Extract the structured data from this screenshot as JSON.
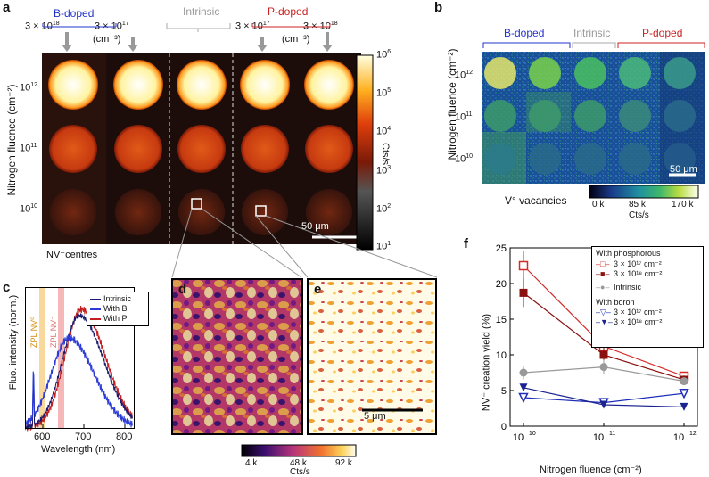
{
  "panels": {
    "a": {
      "label": "a",
      "doping_groups": {
        "b": "B-doped",
        "intrinsic": "Intrinsic",
        "p": "P-doped"
      },
      "concentrations": [
        "3 × 10^18",
        "3 × 10^17",
        "3 × 10^17",
        "3 × 10^18"
      ],
      "conc_labels": {
        "c1": "3 × 10",
        "c1_exp": "18",
        "c2": "3 × 10",
        "c2_exp": "17",
        "c4": "3 × 10",
        "c4_exp": "17",
        "c5": "3 × 10",
        "c5_exp": "18"
      },
      "unit": "(cm⁻³)",
      "y_axis_label": "Nitrogen fluence (cm⁻²)",
      "rows": [
        "10^12",
        "10^11",
        "10^10"
      ],
      "row_labels": {
        "r1": "10",
        "r1e": "12",
        "r2": "10",
        "r2e": "11",
        "r3": "10",
        "r3e": "10"
      },
      "scale_bar": "50 μm",
      "caption": "NV⁻centres",
      "colorbar": {
        "unit": "Cts/s",
        "ticks": [
          "10",
          "10",
          "10",
          "10",
          "10",
          "10"
        ],
        "tick_exp": [
          "6",
          "5",
          "4",
          "3",
          "2",
          "1"
        ]
      },
      "spot_intensity": [
        [
          0.95,
          0.95,
          1.0,
          0.98,
          0.96
        ],
        [
          0.55,
          0.52,
          0.55,
          0.55,
          0.55
        ],
        [
          0.18,
          0.12,
          0.22,
          0.28,
          0.2
        ]
      ]
    },
    "b": {
      "label": "b",
      "doping_groups": {
        "b": "B-doped",
        "intrinsic": "Intrinsic",
        "p": "P-doped"
      },
      "y_axis_label": "Nitrogen fluence (cm⁻²)",
      "rows": {
        "r1": "10",
        "r1e": "12",
        "r2": "10",
        "r2e": "11",
        "r3": "10",
        "r3e": "10"
      },
      "scale_bar": "50 μm",
      "caption": "V° vacancies",
      "colorbar": {
        "min": "0 k",
        "mid": "85 k",
        "max": "170 k",
        "unit": "Cts/s"
      }
    },
    "c": {
      "label": "c",
      "y_axis_label": "Fluo. intensity (norm.)",
      "x_axis_label": "Wavelength (nm)",
      "x_ticks": [
        "600",
        "700",
        "800"
      ],
      "zpl_nv0": "ZPL NV⁰",
      "zpl_nvm": "ZPL NV⁻",
      "legend": [
        "Intrinsic",
        "With B",
        "With P"
      ],
      "colors": {
        "intrinsic": "#1a1a6e",
        "b": "#2b3bd6",
        "p": "#c41e1e"
      }
    },
    "d": {
      "label": "d"
    },
    "e": {
      "label": "e",
      "scale_bar": "5 μm"
    },
    "de_colorbar": {
      "min": "4 k",
      "mid": "48 k",
      "max": "92 k",
      "unit": "Cts/s"
    },
    "f": {
      "label": "f",
      "legend_heading_p": "With phosphorous",
      "legend_heading_b": "With boron",
      "legend_items": {
        "p17": "3 × 10¹⁷ cm⁻²",
        "p18": "3 × 10¹⁸ cm⁻²",
        "intr": "Intrinsic",
        "b17": "3 × 10¹⁷ cm⁻²",
        "b18": "3 × 10¹⁸ cm⁻²"
      }
    }
  },
  "chart_data": [
    {
      "type": "line",
      "title": "",
      "xlabel": "Nitrogen fluence (cm⁻²)",
      "ylabel": "NV⁻ creation yield (%)",
      "xscale": "log",
      "x": [
        10000000000.0,
        100000000000.0,
        1000000000000.0
      ],
      "x_tick_labels": [
        "10",
        "10",
        "10"
      ],
      "x_tick_exp": [
        "10",
        "11",
        "12"
      ],
      "ylim": [
        0,
        25
      ],
      "y_ticks": [
        "0",
        "5",
        "10",
        "15",
        "20",
        "25"
      ],
      "series": [
        {
          "name": "P 3 × 10^17 cm⁻²",
          "values": [
            22.5,
            11.2,
            7.0
          ],
          "color": "#d42a2a",
          "marker": "open-square"
        },
        {
          "name": "P 3 × 10^18 cm⁻²",
          "values": [
            18.7,
            10.0,
            6.5
          ],
          "color": "#8b1010",
          "marker": "filled-square"
        },
        {
          "name": "Intrinsic",
          "values": [
            7.5,
            8.3,
            6.3
          ],
          "color": "#999999",
          "marker": "filled-circle"
        },
        {
          "name": "B 3 × 10^17 cm⁻²",
          "values": [
            4.0,
            3.3,
            4.6
          ],
          "color": "#1f2fb8",
          "marker": "open-triangle"
        },
        {
          "name": "B 3 × 10^18 cm⁻²",
          "values": [
            5.4,
            3.0,
            2.7
          ],
          "color": "#1a2390",
          "marker": "filled-triangle"
        }
      ],
      "errors": [
        [
          2.0,
          1.2,
          0.6
        ],
        [
          2.0,
          1.0,
          0.6
        ],
        [
          0.9,
          1.0,
          0.5
        ],
        [
          0.4,
          0.3,
          0.3
        ],
        [
          0.5,
          0.3,
          0.3
        ]
      ]
    }
  ]
}
